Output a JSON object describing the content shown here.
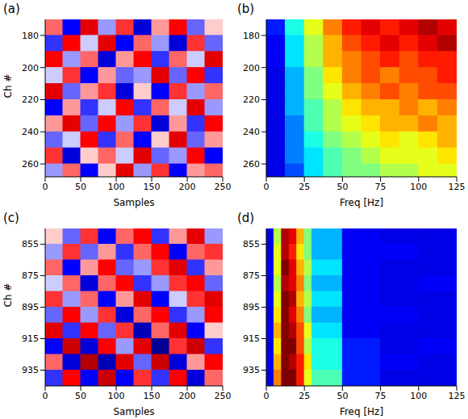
{
  "chart_data": [
    {
      "type": "heatmap",
      "title": "(a)",
      "x_label": "Samples",
      "y_label": "Ch #",
      "xlim": [
        0,
        250
      ],
      "ylim": [
        170,
        268
      ],
      "xticks": [
        0,
        50,
        100,
        150,
        200,
        250
      ],
      "yticks": [
        180,
        200,
        220,
        240,
        260
      ],
      "color": "seismic",
      "zlim": [
        -1,
        1
      ],
      "x_edges": [
        0,
        25,
        50,
        75,
        100,
        125,
        150,
        175,
        200,
        225,
        250
      ],
      "y_edges": [
        170,
        180,
        190,
        200,
        210,
        220,
        230,
        240,
        250,
        260,
        268
      ],
      "cells": [
        [
          0.3,
          -0.5,
          0.6,
          -0.2,
          0.4,
          -0.6,
          0.2,
          0.5,
          -0.3,
          0.1
        ],
        [
          -0.4,
          0.5,
          -0.1,
          0.6,
          -0.5,
          0.3,
          -0.2,
          -0.6,
          0.4,
          -0.3
        ],
        [
          0.5,
          -0.2,
          0.3,
          -0.6,
          0.2,
          0.5,
          -0.4,
          0.3,
          -0.1,
          0.6
        ],
        [
          -0.1,
          0.4,
          -0.5,
          0.2,
          -0.3,
          -0.2,
          0.6,
          -0.3,
          0.5,
          -0.4
        ],
        [
          0.6,
          -0.3,
          0.2,
          0.4,
          -0.6,
          0.1,
          -0.5,
          0.4,
          -0.2,
          0.3
        ],
        [
          -0.5,
          0.2,
          -0.4,
          -0.1,
          0.5,
          -0.4,
          0.3,
          -0.1,
          0.6,
          -0.2
        ],
        [
          0.2,
          0.6,
          -0.3,
          0.5,
          -0.2,
          0.4,
          -0.6,
          0.2,
          -0.4,
          0.5
        ],
        [
          -0.3,
          -0.1,
          0.5,
          -0.4,
          0.3,
          -0.5,
          0.1,
          0.6,
          -0.3,
          0.2
        ],
        [
          0.4,
          -0.6,
          0.1,
          0.3,
          -0.1,
          0.6,
          -0.3,
          -0.2,
          0.5,
          -0.5
        ],
        [
          -0.2,
          0.3,
          -0.5,
          0.1,
          0.6,
          -0.2,
          0.4,
          -0.5,
          0.2,
          0.3
        ]
      ]
    },
    {
      "type": "heatmap",
      "title": "(b)",
      "x_label": "Freq [Hz]",
      "xlim": [
        0,
        125
      ],
      "ylim": [
        170,
        268
      ],
      "xticks": [
        0,
        25,
        50,
        75,
        100,
        125
      ],
      "yticks": [
        180,
        200,
        220,
        240,
        260
      ],
      "color": "jet",
      "zlim": [
        0,
        1
      ],
      "x_edges": [
        0,
        12.5,
        25,
        37.5,
        50,
        62.5,
        75,
        87.5,
        100,
        112.5,
        125
      ],
      "y_edges": [
        170,
        180,
        190,
        200,
        210,
        220,
        230,
        240,
        250,
        260,
        268
      ],
      "cells": [
        [
          0.15,
          0.4,
          0.6,
          0.75,
          0.85,
          0.9,
          0.85,
          0.9,
          0.95,
          0.9
        ],
        [
          0.12,
          0.35,
          0.55,
          0.7,
          0.8,
          0.85,
          0.9,
          0.85,
          0.9,
          0.95
        ],
        [
          0.12,
          0.35,
          0.55,
          0.7,
          0.75,
          0.8,
          0.85,
          0.8,
          0.85,
          0.85
        ],
        [
          0.1,
          0.3,
          0.5,
          0.65,
          0.75,
          0.8,
          0.75,
          0.8,
          0.8,
          0.85
        ],
        [
          0.1,
          0.3,
          0.5,
          0.6,
          0.7,
          0.75,
          0.8,
          0.75,
          0.8,
          0.8
        ],
        [
          0.1,
          0.3,
          0.45,
          0.55,
          0.65,
          0.7,
          0.7,
          0.75,
          0.7,
          0.75
        ],
        [
          0.1,
          0.25,
          0.45,
          0.55,
          0.6,
          0.65,
          0.7,
          0.7,
          0.75,
          0.7
        ],
        [
          0.1,
          0.25,
          0.4,
          0.5,
          0.55,
          0.6,
          0.65,
          0.6,
          0.65,
          0.7
        ],
        [
          0.1,
          0.25,
          0.35,
          0.45,
          0.5,
          0.55,
          0.6,
          0.6,
          0.6,
          0.65
        ],
        [
          0.1,
          0.2,
          0.35,
          0.45,
          0.5,
          0.5,
          0.55,
          0.55,
          0.6,
          0.6
        ]
      ]
    },
    {
      "type": "heatmap",
      "title": "(c)",
      "x_label": "Samples",
      "y_label": "Ch #",
      "xlim": [
        0,
        250
      ],
      "ylim": [
        845,
        945
      ],
      "xticks": [
        0,
        50,
        100,
        150,
        200,
        250
      ],
      "yticks": [
        855,
        875,
        895,
        915,
        935
      ],
      "color": "seismic",
      "zlim": [
        -1,
        1
      ],
      "x_edges": [
        0,
        25,
        50,
        75,
        100,
        125,
        150,
        175,
        200,
        225,
        250
      ],
      "y_edges": [
        845,
        855,
        865,
        875,
        885,
        895,
        905,
        915,
        925,
        935,
        945
      ],
      "cells": [
        [
          0.1,
          -0.3,
          0.4,
          -0.5,
          0.3,
          0.5,
          -0.4,
          0.2,
          0.6,
          -0.2
        ],
        [
          -0.2,
          0.4,
          -0.3,
          0.2,
          -0.4,
          0.3,
          0.5,
          -0.5,
          0.3,
          0.4
        ],
        [
          0.3,
          -0.5,
          0.2,
          0.5,
          -0.3,
          -0.2,
          0.4,
          0.6,
          -0.4,
          0.2
        ],
        [
          -0.1,
          0.3,
          -0.6,
          0.3,
          0.5,
          -0.4,
          -0.2,
          0.4,
          0.5,
          -0.3
        ],
        [
          0.4,
          -0.2,
          0.3,
          -0.5,
          0.2,
          0.6,
          -0.5,
          -0.1,
          0.4,
          0.6
        ],
        [
          -0.3,
          0.5,
          -0.2,
          0.4,
          -0.6,
          0.3,
          0.5,
          -0.4,
          -0.2,
          0.5
        ],
        [
          0.6,
          -0.4,
          0.5,
          -0.3,
          0.4,
          -0.7,
          0.3,
          0.6,
          -0.5,
          0.1
        ],
        [
          -0.5,
          0.7,
          -0.6,
          0.5,
          -0.2,
          0.6,
          -0.8,
          0.4,
          0.7,
          -0.4
        ],
        [
          0.3,
          -0.6,
          0.8,
          -0.7,
          0.6,
          -0.3,
          0.7,
          -0.6,
          0.2,
          0.5
        ],
        [
          -0.4,
          0.5,
          -0.5,
          0.7,
          -0.5,
          0.4,
          -0.4,
          0.5,
          -0.6,
          0.3
        ]
      ]
    },
    {
      "type": "heatmap",
      "title": "(d)",
      "x_label": "Freq [Hz]",
      "xlim": [
        0,
        125
      ],
      "ylim": [
        845,
        945
      ],
      "xticks": [
        0,
        25,
        50,
        75,
        100,
        125
      ],
      "yticks": [
        855,
        875,
        895,
        915,
        935
      ],
      "color": "jet",
      "zlim": [
        0,
        1
      ],
      "x_edges": [
        0,
        5,
        10,
        15,
        20,
        25,
        30,
        50,
        75,
        100,
        125
      ],
      "y_edges": [
        845,
        855,
        865,
        875,
        885,
        895,
        905,
        915,
        925,
        935,
        945
      ],
      "cells": [
        [
          0.1,
          0.55,
          0.95,
          0.9,
          0.7,
          0.5,
          0.3,
          0.12,
          0.1,
          0.1
        ],
        [
          0.1,
          0.6,
          0.95,
          0.85,
          0.65,
          0.5,
          0.3,
          0.12,
          0.12,
          0.1
        ],
        [
          0.12,
          0.6,
          1.0,
          0.9,
          0.7,
          0.55,
          0.35,
          0.12,
          0.1,
          0.1
        ],
        [
          0.1,
          0.55,
          0.95,
          0.9,
          0.75,
          0.5,
          0.3,
          0.12,
          0.1,
          0.12
        ],
        [
          0.12,
          0.6,
          1.0,
          0.95,
          0.7,
          0.55,
          0.35,
          0.12,
          0.1,
          0.1
        ],
        [
          0.1,
          0.65,
          1.0,
          0.9,
          0.75,
          0.5,
          0.3,
          0.12,
          0.12,
          0.1
        ],
        [
          0.12,
          0.7,
          1.0,
          0.95,
          0.8,
          0.6,
          0.35,
          0.12,
          0.1,
          0.1
        ],
        [
          0.1,
          0.65,
          1.0,
          1.0,
          0.8,
          0.55,
          0.4,
          0.15,
          0.1,
          0.12
        ],
        [
          0.12,
          0.7,
          1.0,
          0.95,
          0.85,
          0.65,
          0.4,
          0.15,
          0.12,
          0.1
        ],
        [
          0.1,
          0.75,
          1.0,
          1.0,
          0.85,
          0.6,
          0.45,
          0.15,
          0.1,
          0.1
        ]
      ]
    }
  ]
}
